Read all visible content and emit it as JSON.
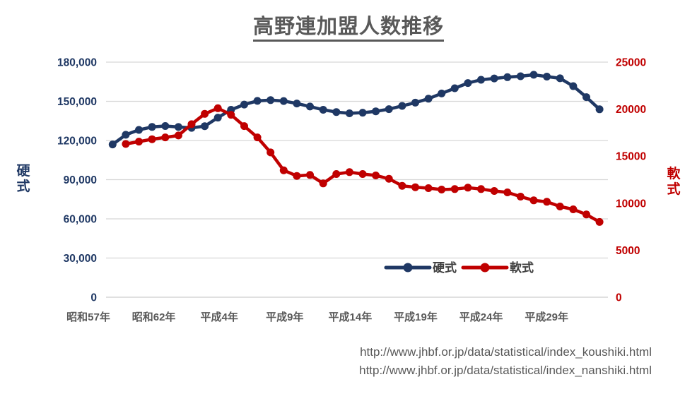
{
  "title": "高野連加盟人数推移",
  "source_urls": [
    "http://www.jhbf.or.jp/data/statistical/index_koushiki.html",
    "http://www.jhbf.or.jp/data/statistical/index_nanshiki.html"
  ],
  "colors": {
    "koushiki": "#1F3864",
    "nanshiki": "#C00000",
    "gridline": "#D6D6D6",
    "axis_gray_text": "#595959"
  },
  "left_axis": {
    "title": "硬式",
    "tick_labels": [
      "180,000",
      "150,000",
      "120,000",
      "90,000",
      "60,000",
      "30,000",
      "0"
    ],
    "min": 0,
    "max": 180000,
    "step": 30000
  },
  "right_axis": {
    "title": "軟式",
    "tick_labels": [
      "25000",
      "20000",
      "15000",
      "10000",
      "5000",
      "0"
    ],
    "min": 0,
    "max": 25000,
    "step": 5000
  },
  "x_axis": {
    "tick_labels": [
      "昭和57年",
      "昭和62年",
      "平成4年",
      "平成9年",
      "平成14年",
      "平成19年",
      "平成24年",
      "平成29年"
    ]
  },
  "legend": [
    {
      "label": "硬式",
      "color": "#1F3864"
    },
    {
      "label": "軟式",
      "color": "#C00000"
    }
  ],
  "chart_data": {
    "type": "line",
    "title": "高野連加盟人数推移",
    "x": [
      1982,
      1983,
      1984,
      1985,
      1986,
      1987,
      1988,
      1989,
      1990,
      1991,
      1992,
      1993,
      1994,
      1995,
      1996,
      1997,
      1998,
      1999,
      2000,
      2001,
      2002,
      2003,
      2004,
      2005,
      2006,
      2007,
      2008,
      2009,
      2010,
      2011,
      2012,
      2013,
      2014,
      2015,
      2016,
      2017,
      2018,
      2019
    ],
    "x_tick_labels": [
      "昭和57年",
      "昭和62年",
      "平成4年",
      "平成9年",
      "平成14年",
      "平成19年",
      "平成24年",
      "平成29年"
    ],
    "grid": true,
    "legend_position": "inside-bottom-center",
    "series": [
      {
        "name": "硬式",
        "axis": "left",
        "color": "#1F3864",
        "ylim": [
          0,
          180000
        ],
        "values": [
          117000,
          124400,
          128100,
          130400,
          131100,
          130300,
          129700,
          131000,
          137500,
          143500,
          147500,
          150300,
          150900,
          150200,
          148300,
          146000,
          143500,
          141800,
          140800,
          141300,
          142300,
          144000,
          146500,
          149000,
          152000,
          156000,
          160000,
          164000,
          166500,
          167500,
          168500,
          169200,
          170300,
          168900,
          167600,
          161600,
          153200,
          143900
        ]
      },
      {
        "name": "軟式",
        "axis": "right",
        "color": "#C00000",
        "ylim": [
          0,
          25000
        ],
        "values": [
          null,
          16300,
          16550,
          16800,
          17000,
          17200,
          18400,
          19500,
          20100,
          19400,
          18200,
          17000,
          15400,
          13500,
          12900,
          13000,
          12100,
          13100,
          13300,
          13100,
          12950,
          12600,
          11850,
          11700,
          11600,
          11450,
          11500,
          11650,
          11500,
          11300,
          11150,
          10700,
          10300,
          10150,
          9650,
          9350,
          8800,
          8000
        ]
      }
    ]
  }
}
